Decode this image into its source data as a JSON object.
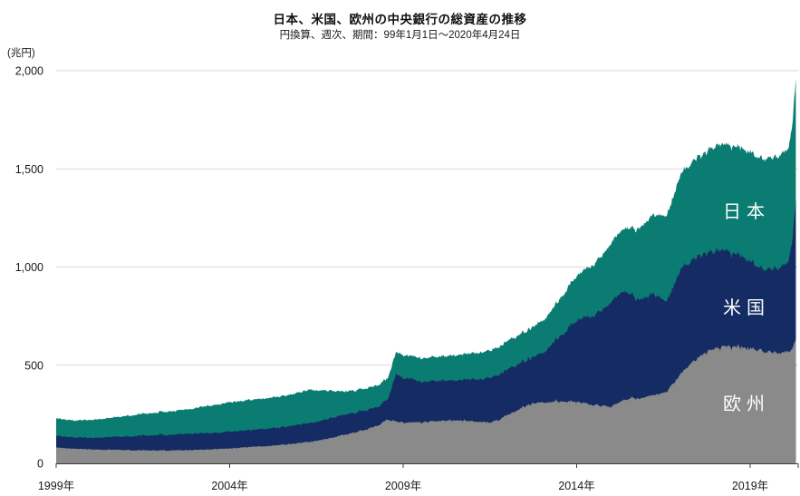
{
  "header": {
    "title": "日本、米国、欧州の中央銀行の総資産の推移",
    "subtitle": "円換算、週次、期間：99年1月1日～2020年4月24日"
  },
  "colors": {
    "background": "#ffffff",
    "grid": "#d9d9d9",
    "axis": "#3d3d3d",
    "text": "#1a1a1a",
    "japan": "#0b7c72",
    "us": "#142b63",
    "europe": "#8a8a8a"
  },
  "chart_data": {
    "type": "area",
    "stacked": true,
    "title": "日本、米国、欧州の中央銀行の総資産の推移",
    "subtitle": "円換算、週次、期間：99年1月1日～2020年4月24日",
    "ylabel": "(兆円)",
    "unit": "兆円",
    "frequency": "weekly",
    "x_range": [
      1999.0,
      2020.315
    ],
    "ylim": [
      0,
      2000
    ],
    "grid": "horizontal-only",
    "legend": "labels-inside-areas",
    "y_ticks": [
      {
        "value": 0,
        "label": "0"
      },
      {
        "value": 500,
        "label": "500"
      },
      {
        "value": 1000,
        "label": "1,000"
      },
      {
        "value": 1500,
        "label": "1,500"
      },
      {
        "value": 2000,
        "label": "2,000"
      }
    ],
    "x_ticks": [
      {
        "year": 1999,
        "label": "1999年"
      },
      {
        "year": 2004,
        "label": "2004年"
      },
      {
        "year": 2009,
        "label": "2009年"
      },
      {
        "year": 2014,
        "label": "2014年"
      },
      {
        "year": 2019,
        "label": "2019年"
      }
    ],
    "end_tick": true,
    "noise": {
      "seed": 11,
      "amp": [
        [
          1.5,
          0.018
        ],
        [
          2.0,
          0.022
        ],
        [
          1.0,
          0.008
        ]
      ]
    },
    "series": [
      {
        "name": "欧州",
        "color": "#8a8a8a",
        "label": {
          "x": 824,
          "y": 452
        },
        "anchors": [
          [
            1999.0,
            80
          ],
          [
            1999.4,
            76
          ],
          [
            1999.8,
            73
          ],
          [
            2000.3,
            70
          ],
          [
            2001.0,
            68
          ],
          [
            2001.6,
            66
          ],
          [
            2002.2,
            65
          ],
          [
            2002.8,
            67
          ],
          [
            2003.4,
            71
          ],
          [
            2004.0,
            76
          ],
          [
            2004.6,
            83
          ],
          [
            2005.2,
            90
          ],
          [
            2005.8,
            100
          ],
          [
            2006.3,
            110
          ],
          [
            2006.8,
            125
          ],
          [
            2007.3,
            145
          ],
          [
            2007.8,
            165
          ],
          [
            2008.3,
            195
          ],
          [
            2008.55,
            225
          ],
          [
            2008.8,
            215
          ],
          [
            2009.0,
            205
          ],
          [
            2009.5,
            210
          ],
          [
            2010.0,
            215
          ],
          [
            2010.5,
            220
          ],
          [
            2011.0,
            214
          ],
          [
            2011.5,
            207
          ],
          [
            2011.8,
            225
          ],
          [
            2012.2,
            265
          ],
          [
            2012.6,
            298
          ],
          [
            2013.0,
            308
          ],
          [
            2013.4,
            318
          ],
          [
            2014.0,
            312
          ],
          [
            2014.5,
            298
          ],
          [
            2015.0,
            288
          ],
          [
            2015.4,
            328
          ],
          [
            2015.8,
            332
          ],
          [
            2016.2,
            348
          ],
          [
            2016.6,
            370
          ],
          [
            2017.0,
            455
          ],
          [
            2017.5,
            540
          ],
          [
            2018.0,
            592
          ],
          [
            2018.4,
            594
          ],
          [
            2019.0,
            588
          ],
          [
            2019.4,
            574
          ],
          [
            2019.8,
            566
          ],
          [
            2020.1,
            566
          ],
          [
            2020.22,
            585
          ],
          [
            2020.315,
            632
          ]
        ]
      },
      {
        "name": "米国",
        "color": "#142b63",
        "label": {
          "x": 824,
          "y": 346
        },
        "anchors": [
          [
            1999.0,
            60
          ],
          [
            1999.4,
            58
          ],
          [
            1999.8,
            58
          ],
          [
            2000.3,
            62
          ],
          [
            2001.0,
            70
          ],
          [
            2001.6,
            76
          ],
          [
            2002.2,
            80
          ],
          [
            2002.8,
            83
          ],
          [
            2003.4,
            85
          ],
          [
            2004.0,
            86
          ],
          [
            2004.6,
            87
          ],
          [
            2005.2,
            89
          ],
          [
            2005.8,
            93
          ],
          [
            2006.3,
            97
          ],
          [
            2006.8,
            100
          ],
          [
            2007.3,
            103
          ],
          [
            2007.8,
            100
          ],
          [
            2008.3,
            94
          ],
          [
            2008.55,
            100
          ],
          [
            2008.8,
            240
          ],
          [
            2009.0,
            228
          ],
          [
            2009.5,
            212
          ],
          [
            2010.0,
            205
          ],
          [
            2010.5,
            204
          ],
          [
            2011.0,
            214
          ],
          [
            2011.5,
            226
          ],
          [
            2011.8,
            232
          ],
          [
            2012.2,
            234
          ],
          [
            2012.6,
            230
          ],
          [
            2013.0,
            250
          ],
          [
            2013.4,
            305
          ],
          [
            2014.0,
            420
          ],
          [
            2014.5,
            450
          ],
          [
            2015.0,
            538
          ],
          [
            2015.4,
            552
          ],
          [
            2015.8,
            502
          ],
          [
            2016.2,
            515
          ],
          [
            2016.6,
            458
          ],
          [
            2017.0,
            530
          ],
          [
            2017.5,
            512
          ],
          [
            2018.0,
            495
          ],
          [
            2018.4,
            482
          ],
          [
            2019.0,
            447
          ],
          [
            2019.4,
            412
          ],
          [
            2019.8,
            428
          ],
          [
            2020.1,
            458
          ],
          [
            2020.22,
            560
          ],
          [
            2020.315,
            706
          ]
        ]
      },
      {
        "name": "日本",
        "color": "#0b7c72",
        "label": {
          "x": 824,
          "y": 240
        },
        "anchors": [
          [
            1999.0,
            90
          ],
          [
            1999.4,
            86
          ],
          [
            1999.8,
            88
          ],
          [
            2000.3,
            94
          ],
          [
            2001.0,
            104
          ],
          [
            2001.6,
            112
          ],
          [
            2002.2,
            119
          ],
          [
            2002.8,
            124
          ],
          [
            2003.4,
            138
          ],
          [
            2004.0,
            150
          ],
          [
            2004.6,
            153
          ],
          [
            2005.2,
            156
          ],
          [
            2005.8,
            160
          ],
          [
            2006.3,
            170
          ],
          [
            2006.8,
            146
          ],
          [
            2007.3,
            118
          ],
          [
            2007.8,
            112
          ],
          [
            2008.3,
            109
          ],
          [
            2008.55,
            108
          ],
          [
            2008.8,
            112
          ],
          [
            2009.0,
            117
          ],
          [
            2009.5,
            120
          ],
          [
            2010.0,
            122
          ],
          [
            2010.5,
            127
          ],
          [
            2011.0,
            133
          ],
          [
            2011.5,
            139
          ],
          [
            2011.8,
            142
          ],
          [
            2012.2,
            146
          ],
          [
            2012.6,
            150
          ],
          [
            2013.0,
            162
          ],
          [
            2013.4,
            183
          ],
          [
            2014.0,
            228
          ],
          [
            2014.5,
            260
          ],
          [
            2015.0,
            300
          ],
          [
            2015.4,
            322
          ],
          [
            2015.8,
            362
          ],
          [
            2016.2,
            402
          ],
          [
            2016.6,
            436
          ],
          [
            2017.0,
            485
          ],
          [
            2017.5,
            505
          ],
          [
            2018.0,
            532
          ],
          [
            2018.4,
            545
          ],
          [
            2019.0,
            555
          ],
          [
            2019.4,
            563
          ],
          [
            2019.8,
            570
          ],
          [
            2020.1,
            578
          ],
          [
            2020.22,
            592
          ],
          [
            2020.315,
            618
          ]
        ]
      }
    ]
  }
}
